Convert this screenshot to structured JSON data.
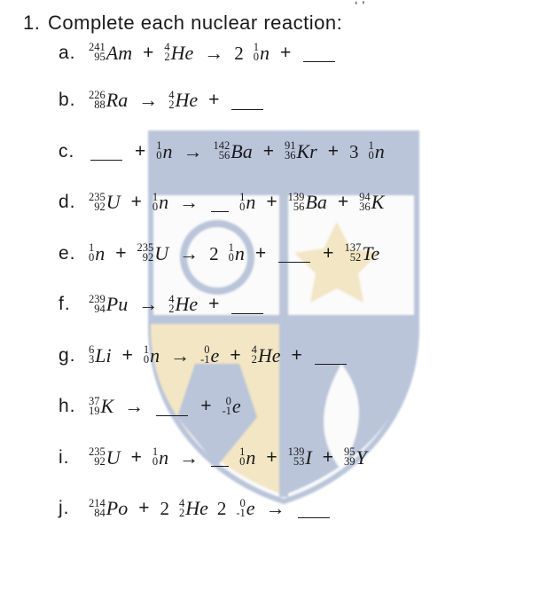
{
  "colors": {
    "text": "#1a1a1a",
    "background": "#ffffff",
    "crest_blue": "#2c4d8f",
    "crest_gold": "#d9b24a",
    "crest_white": "#f3f3f3"
  },
  "typography": {
    "heading_font": "Century Gothic / sans-serif, upright",
    "equation_font": "Cambria Math / serif, italic symbols",
    "base_fontsize_pt": 16,
    "supersub_fontsize_pt": 9
  },
  "question": {
    "number": "1.",
    "prompt": "Complete each nuclear reaction:",
    "trailing_marks": "‘ ’"
  },
  "blank_token": "___",
  "items": [
    {
      "letter": "a.",
      "tokens": [
        {
          "t": "nuclide",
          "mass": "241",
          "anum": "95",
          "sym": "Am"
        },
        {
          "t": "op",
          "v": "+"
        },
        {
          "t": "nuclide",
          "mass": "4",
          "anum": "2",
          "sym": "He"
        },
        {
          "t": "arrow"
        },
        {
          "t": "coef",
          "v": "2"
        },
        {
          "t": "nuclide",
          "mass": "1",
          "anum": "0",
          "sym": "n"
        },
        {
          "t": "op",
          "v": "+"
        },
        {
          "t": "blank"
        }
      ]
    },
    {
      "letter": "b.",
      "tokens": [
        {
          "t": "nuclide",
          "mass": "226",
          "anum": "88",
          "sym": "Ra"
        },
        {
          "t": "arrow"
        },
        {
          "t": "nuclide",
          "mass": "4",
          "anum": "2",
          "sym": "He"
        },
        {
          "t": "op",
          "v": "+"
        },
        {
          "t": "blank"
        }
      ]
    },
    {
      "letter": "c.",
      "tokens": [
        {
          "t": "blank"
        },
        {
          "t": "op",
          "v": "+"
        },
        {
          "t": "nuclide",
          "mass": "1",
          "anum": "0",
          "sym": "n"
        },
        {
          "t": "arrow"
        },
        {
          "t": "nuclide",
          "mass": "142",
          "anum": "56",
          "sym": "Ba"
        },
        {
          "t": "op",
          "v": "+"
        },
        {
          "t": "nuclide",
          "mass": "91",
          "anum": "36",
          "sym": "Kr"
        },
        {
          "t": "op",
          "v": "+"
        },
        {
          "t": "coef",
          "v": "3"
        },
        {
          "t": "nuclide",
          "mass": "1",
          "anum": "0",
          "sym": "n"
        }
      ]
    },
    {
      "letter": "d.",
      "tokens": [
        {
          "t": "nuclide",
          "mass": "235",
          "anum": "92",
          "sym": "U"
        },
        {
          "t": "op",
          "v": "+"
        },
        {
          "t": "nuclide",
          "mass": "1",
          "anum": "0",
          "sym": "n"
        },
        {
          "t": "arrow"
        },
        {
          "t": "blank",
          "short": true
        },
        {
          "t": "nuclide",
          "mass": "1",
          "anum": "0",
          "sym": "n"
        },
        {
          "t": "op",
          "v": "+"
        },
        {
          "t": "nuclide",
          "mass": "139",
          "anum": "56",
          "sym": "Ba"
        },
        {
          "t": "op",
          "v": "+"
        },
        {
          "t": "nuclide",
          "mass": "94",
          "anum": "36",
          "sym": "K"
        }
      ]
    },
    {
      "letter": "e.",
      "tokens": [
        {
          "t": "nuclide",
          "mass": "1",
          "anum": "0",
          "sym": "n"
        },
        {
          "t": "op",
          "v": "+"
        },
        {
          "t": "nuclide",
          "mass": "235",
          "anum": "92",
          "sym": "U"
        },
        {
          "t": "arrow"
        },
        {
          "t": "coef",
          "v": "2"
        },
        {
          "t": "nuclide",
          "mass": "1",
          "anum": "0",
          "sym": "n"
        },
        {
          "t": "op",
          "v": "+"
        },
        {
          "t": "blank"
        },
        {
          "t": "op",
          "v": "+"
        },
        {
          "t": "nuclide",
          "mass": "137",
          "anum": "52",
          "sym": "Te"
        }
      ]
    },
    {
      "letter": "f.",
      "tokens": [
        {
          "t": "nuclide",
          "mass": "239",
          "anum": "94",
          "sym": "Pu"
        },
        {
          "t": "arrow"
        },
        {
          "t": "nuclide",
          "mass": "4",
          "anum": "2",
          "sym": "He"
        },
        {
          "t": "op",
          "v": "+"
        },
        {
          "t": "blank"
        }
      ]
    },
    {
      "letter": "g.",
      "tokens": [
        {
          "t": "nuclide",
          "mass": "6",
          "anum": "3",
          "sym": "Li"
        },
        {
          "t": "op",
          "v": "+"
        },
        {
          "t": "nuclide",
          "mass": "1",
          "anum": "0",
          "sym": "n"
        },
        {
          "t": "arrow"
        },
        {
          "t": "nuclide",
          "mass": "0",
          "anum": "-1",
          "sym": "e"
        },
        {
          "t": "op",
          "v": "+"
        },
        {
          "t": "nuclide",
          "mass": "4",
          "anum": "2",
          "sym": "He"
        },
        {
          "t": "op",
          "v": "+"
        },
        {
          "t": "blank"
        }
      ]
    },
    {
      "letter": "h.",
      "tokens": [
        {
          "t": "nuclide",
          "mass": "37",
          "anum": "19",
          "sym": "K"
        },
        {
          "t": "arrow"
        },
        {
          "t": "blank"
        },
        {
          "t": "op",
          "v": "+"
        },
        {
          "t": "nuclide",
          "mass": "0",
          "anum": "-1",
          "sym": "e"
        }
      ]
    },
    {
      "letter": "i.",
      "tokens": [
        {
          "t": "nuclide",
          "mass": "235",
          "anum": "92",
          "sym": "U"
        },
        {
          "t": "op",
          "v": "+"
        },
        {
          "t": "nuclide",
          "mass": "1",
          "anum": "0",
          "sym": "n"
        },
        {
          "t": "arrow"
        },
        {
          "t": "blank",
          "short": true
        },
        {
          "t": "nuclide",
          "mass": "1",
          "anum": "0",
          "sym": "n"
        },
        {
          "t": "op",
          "v": "+"
        },
        {
          "t": "nuclide",
          "mass": "139",
          "anum": "53",
          "sym": "I"
        },
        {
          "t": "op",
          "v": "+"
        },
        {
          "t": "nuclide",
          "mass": "95",
          "anum": "39",
          "sym": "Y"
        }
      ]
    },
    {
      "letter": "j.",
      "tokens": [
        {
          "t": "nuclide",
          "mass": "214",
          "anum": "84",
          "sym": "Po"
        },
        {
          "t": "op",
          "v": "+"
        },
        {
          "t": "coef",
          "v": "2"
        },
        {
          "t": "nuclide",
          "mass": "4",
          "anum": "2",
          "sym": "He"
        },
        {
          "t": "coef",
          "v": "2"
        },
        {
          "t": "nuclide",
          "mass": "0",
          "anum": "-1",
          "sym": "e"
        },
        {
          "t": "arrow"
        },
        {
          "t": "blank"
        }
      ]
    }
  ]
}
